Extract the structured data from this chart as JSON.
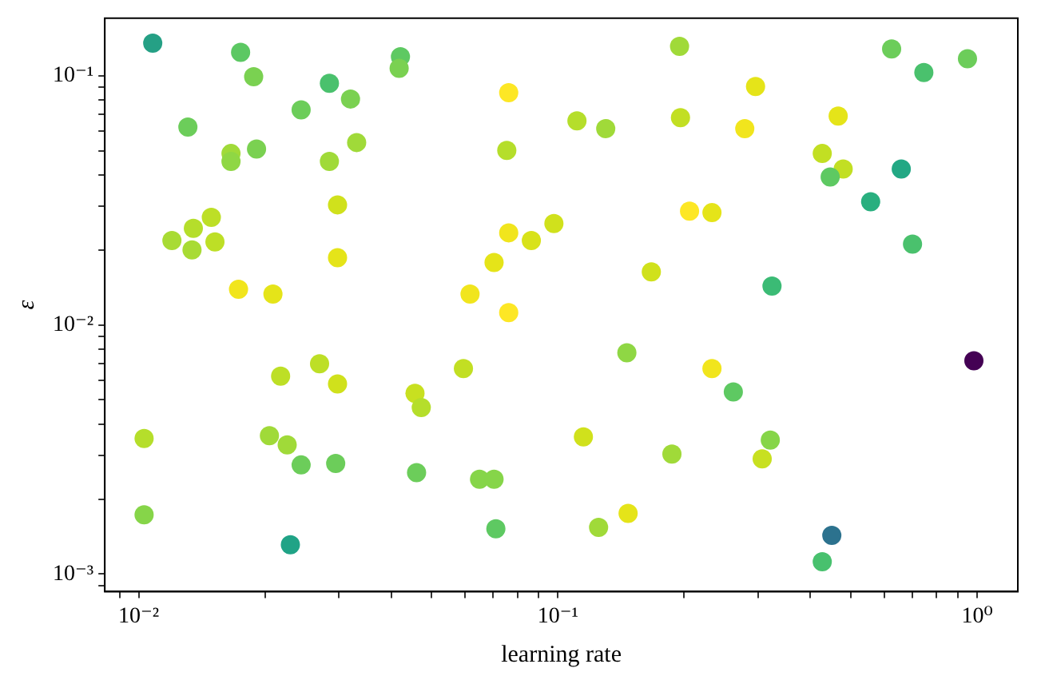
{
  "chart_data": {
    "type": "scatter",
    "xlabel": "learning rate",
    "ylabel": "ε",
    "log": "xy",
    "grid": false,
    "legend": false,
    "marker": "circle",
    "xlim": [
      0.0083,
      1.25
    ],
    "ylim": [
      0.00085,
      0.17
    ],
    "xticks": [
      {
        "value": 0.009,
        "label": null
      },
      {
        "value": 0.01,
        "label": "10⁻²"
      },
      {
        "value": 0.02,
        "label": null
      },
      {
        "value": 0.03,
        "label": null
      },
      {
        "value": 0.04,
        "label": null
      },
      {
        "value": 0.05,
        "label": null
      },
      {
        "value": 0.06,
        "label": null
      },
      {
        "value": 0.07,
        "label": null
      },
      {
        "value": 0.08,
        "label": null
      },
      {
        "value": 0.09,
        "label": null
      },
      {
        "value": 0.1,
        "label": "10⁻¹"
      },
      {
        "value": 0.2,
        "label": null
      },
      {
        "value": 0.3,
        "label": null
      },
      {
        "value": 0.4,
        "label": null
      },
      {
        "value": 0.5,
        "label": null
      },
      {
        "value": 0.6,
        "label": null
      },
      {
        "value": 0.7,
        "label": null
      },
      {
        "value": 0.8,
        "label": null
      },
      {
        "value": 0.9,
        "label": null
      },
      {
        "value": 1,
        "label": "10⁰"
      }
    ],
    "yticks": [
      {
        "value": 0.0009,
        "label": null
      },
      {
        "value": 0.001,
        "label": "10⁻³"
      },
      {
        "value": 0.002,
        "label": null
      },
      {
        "value": 0.003,
        "label": null
      },
      {
        "value": 0.004,
        "label": null
      },
      {
        "value": 0.005,
        "label": null
      },
      {
        "value": 0.006,
        "label": null
      },
      {
        "value": 0.007,
        "label": null
      },
      {
        "value": 0.008,
        "label": null
      },
      {
        "value": 0.009,
        "label": null
      },
      {
        "value": 0.01,
        "label": "10⁻²"
      },
      {
        "value": 0.02,
        "label": null
      },
      {
        "value": 0.03,
        "label": null
      },
      {
        "value": 0.04,
        "label": null
      },
      {
        "value": 0.05,
        "label": null
      },
      {
        "value": 0.06,
        "label": null
      },
      {
        "value": 0.07,
        "label": null
      },
      {
        "value": 0.08,
        "label": null
      },
      {
        "value": 0.09,
        "label": null
      },
      {
        "value": 0.1,
        "label": "10⁻¹"
      }
    ],
    "x": [
      0.0108,
      0.0175,
      0.0188,
      0.0131,
      0.0166,
      0.0166,
      0.0191,
      0.012,
      0.0135,
      0.0134,
      0.0149,
      0.0152,
      0.0173,
      0.0209,
      0.0244,
      0.0285,
      0.032,
      0.0331,
      0.0285,
      0.0298,
      0.0298,
      0.0421,
      0.0418,
      0.0218,
      0.027,
      0.0298,
      0.0103,
      0.0103,
      0.0205,
      0.0226,
      0.0244,
      0.0295,
      0.023,
      0.0456,
      0.0472,
      0.046,
      0.0763,
      0.0755,
      0.0763,
      0.0763,
      0.0704,
      0.0864,
      0.0978,
      0.0617,
      0.0595,
      0.065,
      0.0704,
      0.0711,
      0.111,
      0.13,
      0.167,
      0.146,
      0.115,
      0.125,
      0.147,
      0.195,
      0.196,
      0.296,
      0.279,
      0.206,
      0.233,
      0.324,
      0.233,
      0.262,
      0.187,
      0.321,
      0.307,
      0.427,
      0.466,
      0.479,
      0.446,
      0.557,
      0.625,
      0.746,
      0.948,
      0.659,
      0.701,
      0.982,
      0.45,
      0.427
    ],
    "values": [
      0.135,
      0.124,
      0.099,
      0.0622,
      0.0487,
      0.0453,
      0.0508,
      0.0218,
      0.0244,
      0.02,
      0.027,
      0.0215,
      0.0139,
      0.0133,
      0.0729,
      0.0931,
      0.0806,
      0.0539,
      0.0453,
      0.0303,
      0.0186,
      0.119,
      0.107,
      0.00622,
      0.00698,
      0.00579,
      0.0035,
      0.00173,
      0.00359,
      0.0033,
      0.00274,
      0.00278,
      0.00131,
      0.00531,
      0.00466,
      0.00255,
      0.0854,
      0.0501,
      0.0234,
      0.0112,
      0.0178,
      0.0218,
      0.0255,
      0.0133,
      0.00668,
      0.0024,
      0.0024,
      0.00152,
      0.0659,
      0.0613,
      0.0163,
      0.00772,
      0.00355,
      0.00154,
      0.00175,
      0.131,
      0.0678,
      0.0904,
      0.0613,
      0.0286,
      0.0282,
      0.0143,
      0.00668,
      0.00538,
      0.00303,
      0.00345,
      0.0029,
      0.0487,
      0.0688,
      0.0422,
      0.0392,
      0.0312,
      0.128,
      0.103,
      0.117,
      0.0422,
      0.0211,
      0.00718,
      0.00143,
      0.00112
    ],
    "colors": [
      "#25a085",
      "#5cc863",
      "#7ad151",
      "#6ccd5a",
      "#a0da39",
      "#8fd744",
      "#7ad151",
      "#a8db34",
      "#b5de2b",
      "#a8db34",
      "#bddf26",
      "#bddf26",
      "#f1e51d",
      "#e5e419",
      "#6ccd5a",
      "#4ac16d",
      "#7ad151",
      "#a0da39",
      "#a0da39",
      "#d0e11c",
      "#e5e419",
      "#5ec962",
      "#7ad151",
      "#bddf26",
      "#bddf26",
      "#d0e11c",
      "#b5de2b",
      "#86d549",
      "#a0da39",
      "#a0da39",
      "#6ccd5a",
      "#6ccd5a",
      "#20a386",
      "#c8e020",
      "#b5de2b",
      "#6ccd5a",
      "#fde725",
      "#b5de2b",
      "#f1e51d",
      "#fde725",
      "#e5e419",
      "#d8e219",
      "#d0e11c",
      "#f1e51d",
      "#c2df23",
      "#86d549",
      "#86d549",
      "#5ec962",
      "#b5de2b",
      "#a0da39",
      "#d0e11c",
      "#8fd744",
      "#d0e11c",
      "#a0da39",
      "#e5e419",
      "#a0da39",
      "#c2df23",
      "#e5e419",
      "#f1e51d",
      "#fde725",
      "#e5e419",
      "#3bbb75",
      "#f1e51d",
      "#5ec962",
      "#a0da39",
      "#86d549",
      "#c8e020",
      "#c2df23",
      "#e5e419",
      "#c2df23",
      "#5ec962",
      "#29af7f",
      "#6ccd5a",
      "#4ac16d",
      "#6ccd5a",
      "#22a884",
      "#4ac16d",
      "#440154",
      "#2c728e",
      "#48c16e"
    ]
  }
}
